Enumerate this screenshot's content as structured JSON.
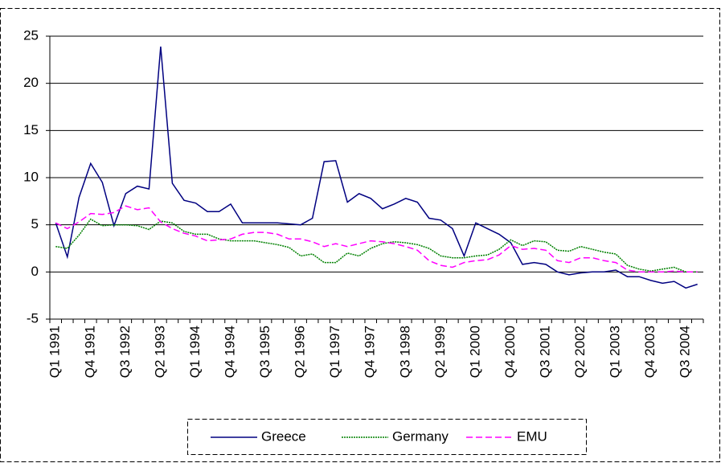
{
  "chart_data": {
    "type": "line",
    "categories": [
      "Q1 1991",
      null,
      null,
      "Q4 1991",
      null,
      null,
      "Q3 1992",
      null,
      null,
      "Q2 1993",
      null,
      null,
      "Q1 1994",
      null,
      null,
      "Q4 1994",
      null,
      null,
      "Q3 1995",
      null,
      null,
      "Q2 1996",
      null,
      null,
      "Q1 1997",
      null,
      null,
      "Q4 1997",
      null,
      null,
      "Q3 1998",
      null,
      null,
      "Q2 1999",
      null,
      null,
      "Q1 2000",
      null,
      null,
      "Q4 2000",
      null,
      null,
      "Q3 2001",
      null,
      null,
      "Q2 2002",
      null,
      null,
      "Q1 2003",
      null,
      null,
      "Q4 2003",
      null,
      null,
      "Q3 2004",
      null
    ],
    "series": [
      {
        "name": "Greece",
        "color": "#000080",
        "dash": "solid",
        "values": [
          5.2,
          1.6,
          7.9,
          11.5,
          9.5,
          4.9,
          8.3,
          9.1,
          8.8,
          23.9,
          9.4,
          7.6,
          7.3,
          6.4,
          6.4,
          7.2,
          5.2,
          5.2,
          5.2,
          5.2,
          5.1,
          5.0,
          5.7,
          11.7,
          11.8,
          7.4,
          8.3,
          7.8,
          6.7,
          7.2,
          7.8,
          7.4,
          5.7,
          5.5,
          4.6,
          1.7,
          5.2,
          4.6,
          4.0,
          3.1,
          0.8,
          1.0,
          0.8,
          0.0,
          -0.3,
          -0.1,
          0.0,
          0.0,
          0.2,
          -0.5,
          -0.5,
          -0.9,
          -1.2,
          -1.0,
          -1.7,
          -1.3
        ]
      },
      {
        "name": "Germany",
        "color": "#008000",
        "dash": "dotted",
        "values": [
          2.7,
          2.5,
          3.9,
          5.6,
          4.9,
          5.0,
          5.0,
          4.9,
          4.5,
          5.4,
          5.2,
          4.3,
          4.0,
          4.0,
          3.5,
          3.3,
          3.3,
          3.3,
          3.1,
          2.9,
          2.6,
          1.7,
          1.9,
          1.0,
          1.0,
          2.0,
          1.7,
          2.5,
          3.0,
          3.2,
          3.1,
          2.9,
          2.5,
          1.7,
          1.5,
          1.5,
          1.7,
          1.8,
          2.4,
          3.4,
          2.8,
          3.3,
          3.2,
          2.3,
          2.2,
          2.7,
          2.4,
          2.1,
          1.9,
          0.7,
          0.3,
          0.1,
          0.3,
          0.5,
          0.0,
          0.0
        ]
      },
      {
        "name": "EMU",
        "color": "#ff00ff",
        "dash": "dashed",
        "values": [
          5.2,
          4.6,
          5.3,
          6.2,
          6.1,
          6.3,
          7.0,
          6.6,
          6.8,
          5.3,
          4.6,
          4.1,
          3.8,
          3.3,
          3.4,
          3.5,
          4.0,
          4.2,
          4.2,
          4.0,
          3.5,
          3.5,
          3.2,
          2.7,
          3.0,
          2.7,
          3.0,
          3.3,
          3.2,
          3.0,
          2.7,
          2.3,
          1.2,
          0.7,
          0.5,
          1.0,
          1.2,
          1.3,
          1.8,
          2.8,
          2.4,
          2.5,
          2.3,
          1.2,
          1.0,
          1.5,
          1.5,
          1.2,
          1.0,
          0.2,
          0.0,
          0.0,
          0.0,
          0.1,
          0.0,
          0.0
        ]
      }
    ],
    "ylim": [
      -5,
      25
    ],
    "yticks": [
      -5,
      0,
      5,
      10,
      15,
      20,
      25
    ],
    "grid": true,
    "legend": "bottom"
  }
}
